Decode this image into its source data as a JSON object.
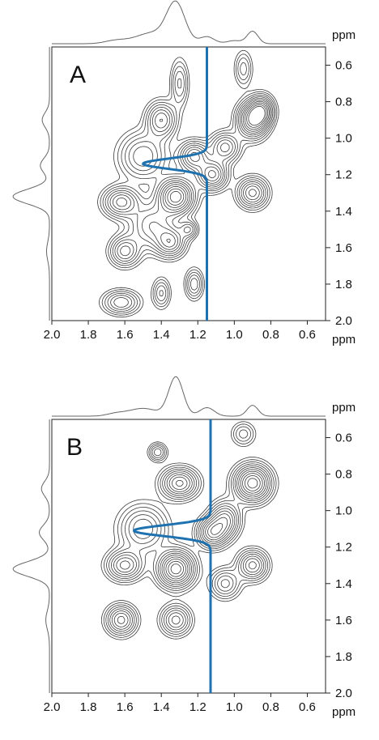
{
  "chart_data": [
    {
      "type": "heatmap",
      "panel_label": "A",
      "x_unit": "ppm",
      "y_unit": "ppm",
      "xlim": [
        2.0,
        0.5
      ],
      "ylim": [
        0.5,
        2.0
      ],
      "x_ticks": [
        "2.0",
        "1.8",
        "1.6",
        "1.4",
        "1.2",
        "1.0",
        "0.8",
        "0.6"
      ],
      "y_ticks": [
        "0.6",
        "0.8",
        "1.0",
        "1.2",
        "1.4",
        "1.6",
        "1.8",
        "2.0"
      ],
      "projection_peaks": [
        {
          "ppm": 1.32,
          "intensity": 1.0,
          "width": 0.05
        },
        {
          "ppm": 1.45,
          "intensity": 0.28,
          "width": 0.09
        },
        {
          "ppm": 1.15,
          "intensity": 0.18,
          "width": 0.04
        },
        {
          "ppm": 0.9,
          "intensity": 0.32,
          "width": 0.03
        },
        {
          "ppm": 1.65,
          "intensity": 0.08,
          "width": 0.06
        },
        {
          "ppm": 1.0,
          "intensity": 0.08,
          "width": 0.04
        }
      ],
      "contour_peaks": [
        {
          "x": 1.32,
          "y": 1.32,
          "amp": 1.0,
          "sx": 0.06,
          "sy": 0.06
        },
        {
          "x": 1.62,
          "y": 1.35,
          "amp": 0.6,
          "sx": 0.06,
          "sy": 0.05
        },
        {
          "x": 1.6,
          "y": 1.62,
          "amp": 0.5,
          "sx": 0.05,
          "sy": 0.05
        },
        {
          "x": 1.62,
          "y": 1.9,
          "amp": 0.45,
          "sx": 0.06,
          "sy": 0.04
        },
        {
          "x": 1.35,
          "y": 1.57,
          "amp": 0.55,
          "sx": 0.05,
          "sy": 0.05
        },
        {
          "x": 1.4,
          "y": 0.9,
          "amp": 0.55,
          "sx": 0.05,
          "sy": 0.06
        },
        {
          "x": 1.22,
          "y": 1.1,
          "amp": 0.6,
          "sx": 0.05,
          "sy": 0.05
        },
        {
          "x": 1.12,
          "y": 1.2,
          "amp": 0.7,
          "sx": 0.05,
          "sy": 0.05
        },
        {
          "x": 0.9,
          "y": 0.9,
          "amp": 0.9,
          "sx": 0.05,
          "sy": 0.06
        },
        {
          "x": 0.85,
          "y": 0.85,
          "amp": 0.7,
          "sx": 0.04,
          "sy": 0.05
        },
        {
          "x": 0.9,
          "y": 1.3,
          "amp": 0.6,
          "sx": 0.05,
          "sy": 0.05
        },
        {
          "x": 1.05,
          "y": 1.05,
          "amp": 0.5,
          "sx": 0.05,
          "sy": 0.05
        },
        {
          "x": 1.25,
          "y": 1.5,
          "amp": 0.35,
          "sx": 0.03,
          "sy": 0.03
        },
        {
          "x": 1.22,
          "y": 1.8,
          "amp": 0.35,
          "sx": 0.03,
          "sy": 0.05
        },
        {
          "x": 1.4,
          "y": 1.85,
          "amp": 0.3,
          "sx": 0.03,
          "sy": 0.05
        },
        {
          "x": 1.5,
          "y": 1.1,
          "amp": 0.45,
          "sx": 0.08,
          "sy": 0.08
        },
        {
          "x": 1.45,
          "y": 1.48,
          "amp": 0.45,
          "sx": 0.08,
          "sy": 0.08
        },
        {
          "x": 1.3,
          "y": 0.7,
          "amp": 0.3,
          "sx": 0.03,
          "sy": 0.08
        },
        {
          "x": 0.95,
          "y": 0.62,
          "amp": 0.25,
          "sx": 0.03,
          "sy": 0.06
        }
      ],
      "blue_trace": {
        "base_ppm": 1.15,
        "dip_center": 1.14,
        "dip_to_ppm": 1.5,
        "dip_width": 0.028
      },
      "left_projection_peaks": [
        {
          "ppm": 1.32,
          "intensity": 1.0,
          "width": 0.04
        },
        {
          "ppm": 1.15,
          "intensity": 0.25,
          "width": 0.04
        },
        {
          "ppm": 0.9,
          "intensity": 0.2,
          "width": 0.04
        },
        {
          "ppm": 1.62,
          "intensity": 0.08,
          "width": 0.05
        }
      ]
    },
    {
      "type": "heatmap",
      "panel_label": "B",
      "x_unit": "ppm",
      "y_unit": "ppm",
      "xlim": [
        2.0,
        0.5
      ],
      "ylim": [
        0.5,
        2.0
      ],
      "x_ticks": [
        "2.0",
        "1.8",
        "1.6",
        "1.4",
        "1.2",
        "1.0",
        "0.8",
        "0.6"
      ],
      "y_ticks": [
        "0.6",
        "0.8",
        "1.0",
        "1.2",
        "1.4",
        "1.6",
        "1.8",
        "2.0"
      ],
      "projection_peaks": [
        {
          "ppm": 1.32,
          "intensity": 1.0,
          "width": 0.04
        },
        {
          "ppm": 1.5,
          "intensity": 0.2,
          "width": 0.08
        },
        {
          "ppm": 1.15,
          "intensity": 0.22,
          "width": 0.04
        },
        {
          "ppm": 0.9,
          "intensity": 0.28,
          "width": 0.03
        },
        {
          "ppm": 1.65,
          "intensity": 0.06,
          "width": 0.05
        }
      ],
      "contour_peaks": [
        {
          "x": 1.32,
          "y": 1.32,
          "amp": 1.0,
          "sx": 0.06,
          "sy": 0.06
        },
        {
          "x": 1.6,
          "y": 1.3,
          "amp": 0.6,
          "sx": 0.06,
          "sy": 0.05
        },
        {
          "x": 1.62,
          "y": 1.6,
          "amp": 0.6,
          "sx": 0.05,
          "sy": 0.05
        },
        {
          "x": 1.32,
          "y": 1.6,
          "amp": 0.5,
          "sx": 0.05,
          "sy": 0.05
        },
        {
          "x": 1.3,
          "y": 0.85,
          "amp": 0.7,
          "sx": 0.06,
          "sy": 0.05
        },
        {
          "x": 1.12,
          "y": 1.12,
          "amp": 0.7,
          "sx": 0.05,
          "sy": 0.05
        },
        {
          "x": 0.9,
          "y": 0.85,
          "amp": 1.0,
          "sx": 0.06,
          "sy": 0.06
        },
        {
          "x": 0.9,
          "y": 1.3,
          "amp": 0.6,
          "sx": 0.05,
          "sy": 0.05
        },
        {
          "x": 1.05,
          "y": 1.05,
          "amp": 0.6,
          "sx": 0.05,
          "sy": 0.06
        },
        {
          "x": 1.42,
          "y": 0.68,
          "amp": 0.35,
          "sx": 0.03,
          "sy": 0.03
        },
        {
          "x": 1.05,
          "y": 1.4,
          "amp": 0.4,
          "sx": 0.05,
          "sy": 0.05
        },
        {
          "x": 1.5,
          "y": 1.1,
          "amp": 0.45,
          "sx": 0.08,
          "sy": 0.08
        },
        {
          "x": 0.95,
          "y": 0.58,
          "amp": 0.25,
          "sx": 0.04,
          "sy": 0.04
        }
      ],
      "blue_trace": {
        "base_ppm": 1.13,
        "dip_center": 1.11,
        "dip_to_ppm": 1.55,
        "dip_width": 0.03
      },
      "left_projection_peaks": [
        {
          "ppm": 1.32,
          "intensity": 1.0,
          "width": 0.04
        },
        {
          "ppm": 1.12,
          "intensity": 0.28,
          "width": 0.04
        },
        {
          "ppm": 0.88,
          "intensity": 0.22,
          "width": 0.04
        },
        {
          "ppm": 1.6,
          "intensity": 0.1,
          "width": 0.05
        }
      ]
    }
  ],
  "colors": {
    "contour": "#3a3a3a",
    "trace": "#1f72b0",
    "axis": "#222222"
  }
}
